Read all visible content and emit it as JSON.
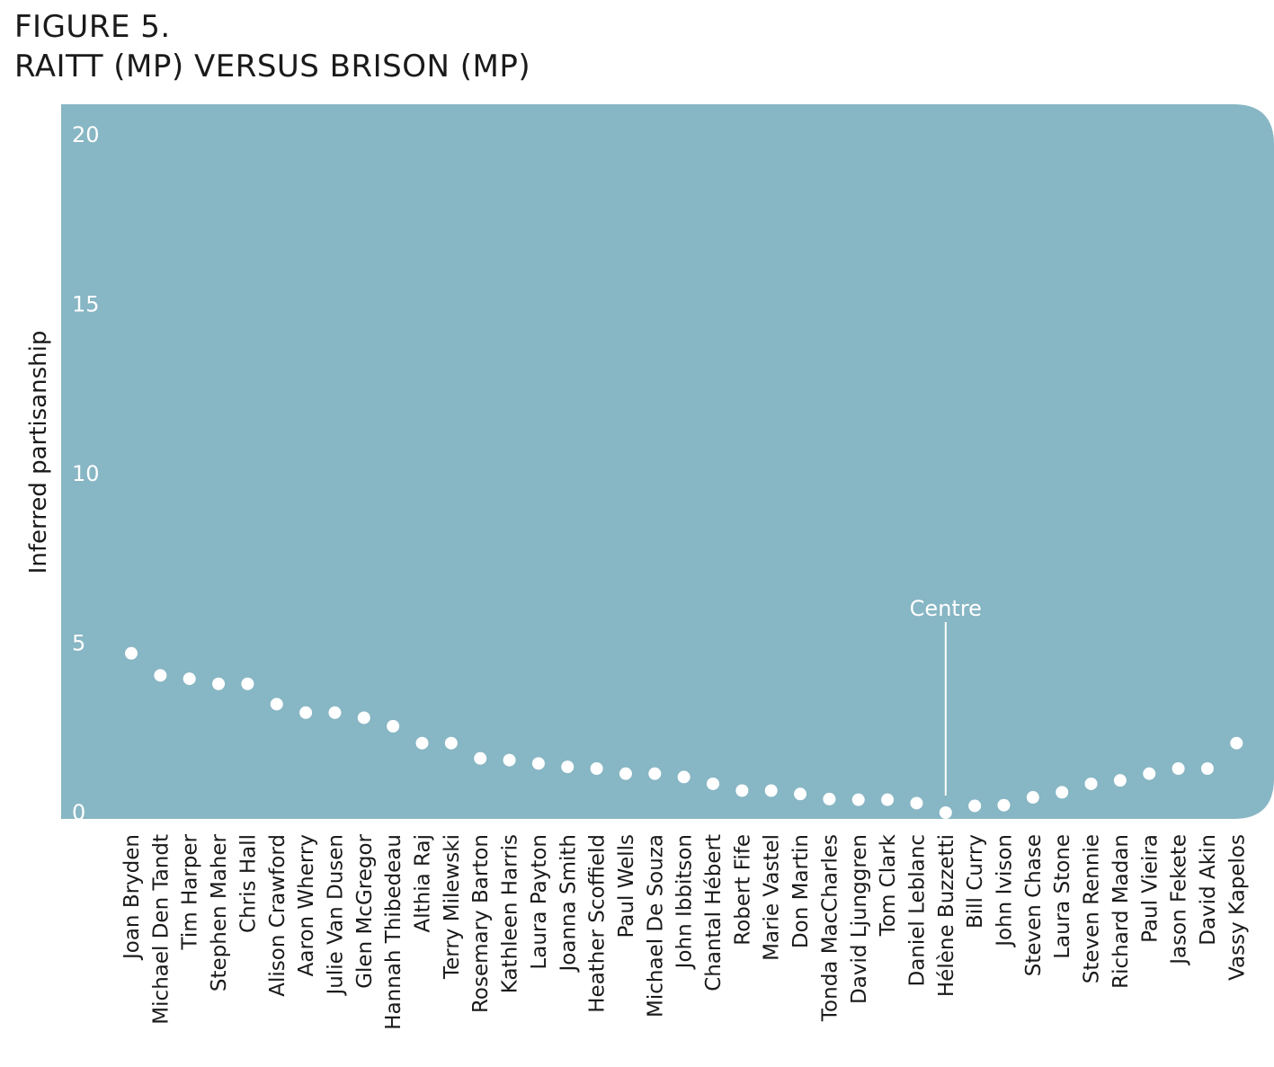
{
  "figure": {
    "number": "FIGURE 5.",
    "title": "RAITT (MP) VERSUS BRISON (MP)"
  },
  "colors": {
    "panel": "#87b6c4",
    "marker": "#ffffff",
    "text": "#1a1a1a"
  },
  "chart_data": {
    "type": "scatter",
    "ylabel": "Inferred partisanship",
    "ylim": [
      0,
      20
    ],
    "yticks": [
      0,
      5,
      10,
      15,
      20
    ],
    "grid": false,
    "annotation": {
      "label": "Centre",
      "category": "Hélène Buzzetti"
    },
    "categories": [
      "Joan Bryden",
      "Michael Den Tandt",
      "Tim Harper",
      "Stephen Maher",
      "Chris Hall",
      "Alison Crawford",
      "Aaron Wherry",
      "Julie Van Dusen",
      "Glen McGregor",
      "Hannah Thibedeau",
      "Althia Raj",
      "Terry Milewski",
      "Rosemary Barton",
      "Kathleen Harris",
      "Laura Payton",
      "Joanna Smith",
      "Heather Scoffield",
      "Paul Wells",
      "Michael De Souza",
      "John Ibbitson",
      "Chantal Hébert",
      "Robert Fife",
      "Marie Vastel",
      "Don Martin",
      "Tonda MacCharles",
      "David Ljunggren",
      "Tom Clark",
      "Daniel Leblanc",
      "Hélène Buzzetti",
      "Bill Curry",
      "John Ivison",
      "Steven Chase",
      "Laura Stone",
      "Steven Rennie",
      "Richard Madan",
      "Paul Vieira",
      "Jason Fekete",
      "David Akin",
      "Vassy Kapelos"
    ],
    "values": [
      4.7,
      4.05,
      3.95,
      3.8,
      3.8,
      3.2,
      2.95,
      2.95,
      2.8,
      2.55,
      2.05,
      2.05,
      1.6,
      1.55,
      1.45,
      1.35,
      1.3,
      1.15,
      1.15,
      1.05,
      0.85,
      0.65,
      0.65,
      0.55,
      0.4,
      0.38,
      0.38,
      0.28,
      0.0,
      0.2,
      0.22,
      0.45,
      0.6,
      0.85,
      0.95,
      1.15,
      1.3,
      1.3,
      2.05
    ]
  }
}
